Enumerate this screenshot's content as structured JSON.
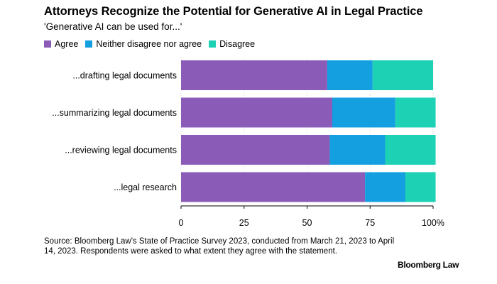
{
  "chart_data": {
    "type": "bar",
    "orientation": "horizontal",
    "stacked": true,
    "title": "Attorneys Recognize the Potential for Generative AI in Legal Practice",
    "subtitle": "'Generative AI can be used for...'",
    "categories": [
      "...drafting legal documents",
      "...summarizing legal documents",
      "...reviewing legal documents",
      "...legal research"
    ],
    "series": [
      {
        "name": "Agree",
        "color": "#8a5cb8",
        "values": [
          58,
          60,
          59,
          73
        ]
      },
      {
        "name": "Neither disagree nor agree",
        "color": "#139fe0",
        "values": [
          18,
          25,
          22,
          16
        ]
      },
      {
        "name": "Disagree",
        "color": "#1dd1b4",
        "values": [
          24,
          16,
          20,
          12
        ]
      }
    ],
    "xlim": [
      0,
      100
    ],
    "x_ticks": [
      0,
      25,
      50,
      75,
      100
    ],
    "x_tick_labels": [
      "0",
      "25",
      "50",
      "75",
      "100%"
    ],
    "legend_position": "top-left",
    "grid": true
  },
  "source_note": "Source: Bloomberg Law's State of Practice Survey 2023, conducted from March 21, 2023 to April 14, 2023. Respondents were asked to what extent they agree with the statement.",
  "brand": "Bloomberg Law"
}
